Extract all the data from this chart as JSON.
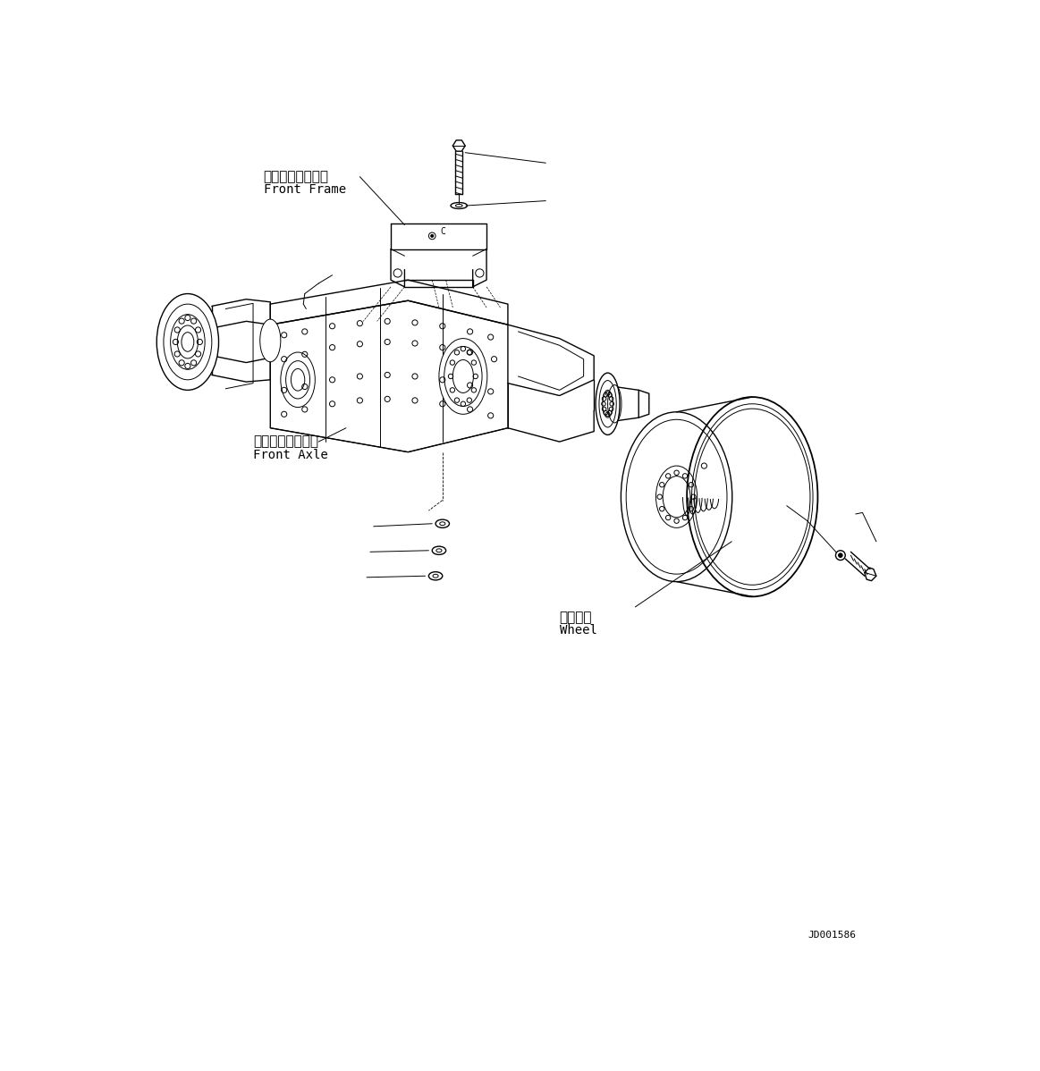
{
  "bg_color": "#ffffff",
  "line_color": "#000000",
  "fig_width": 11.63,
  "fig_height": 11.98,
  "dpi": 100,
  "labels": {
    "front_frame_jp": "フロントフレーム",
    "front_frame_en": "Front Frame",
    "front_axle_jp": "フロントアクスル",
    "front_axle_en": "Front Axle",
    "wheel_jp": "ホイール",
    "wheel_en": "Wheel",
    "part_number": "JD001586"
  },
  "font_size_jp": 11,
  "font_size_en": 10,
  "font_size_pn": 8,
  "font_family": "monospace"
}
